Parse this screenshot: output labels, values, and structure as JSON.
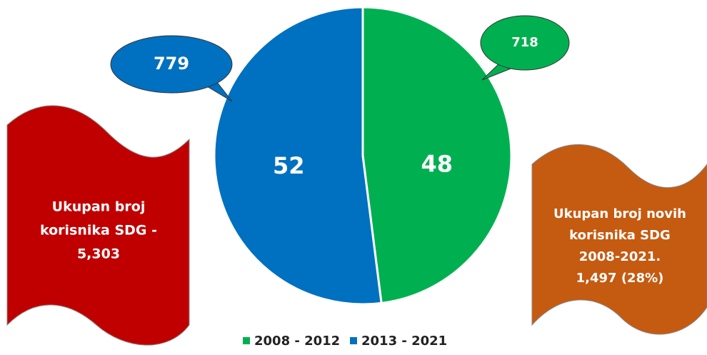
{
  "chart_data": {
    "type": "pie",
    "categories": [
      "2008 - 2012",
      "2013 - 2021"
    ],
    "values": [
      48,
      52
    ],
    "colors": [
      "#00b050",
      "#0070c0"
    ],
    "legend": "bottom",
    "callouts": [
      {
        "text": "718",
        "color": "#00b050"
      },
      {
        "text": "779",
        "color": "#0070c0"
      }
    ],
    "banners": [
      {
        "lines": [
          "Ukupan broj",
          "korisnika SDG -",
          "5,303"
        ],
        "color": "#c00000"
      },
      {
        "lines": [
          "Ukupan broj novih",
          "korisnika SDG",
          "2008-2021.",
          "1,497 (28%)"
        ],
        "color": "#c55a11"
      }
    ]
  }
}
